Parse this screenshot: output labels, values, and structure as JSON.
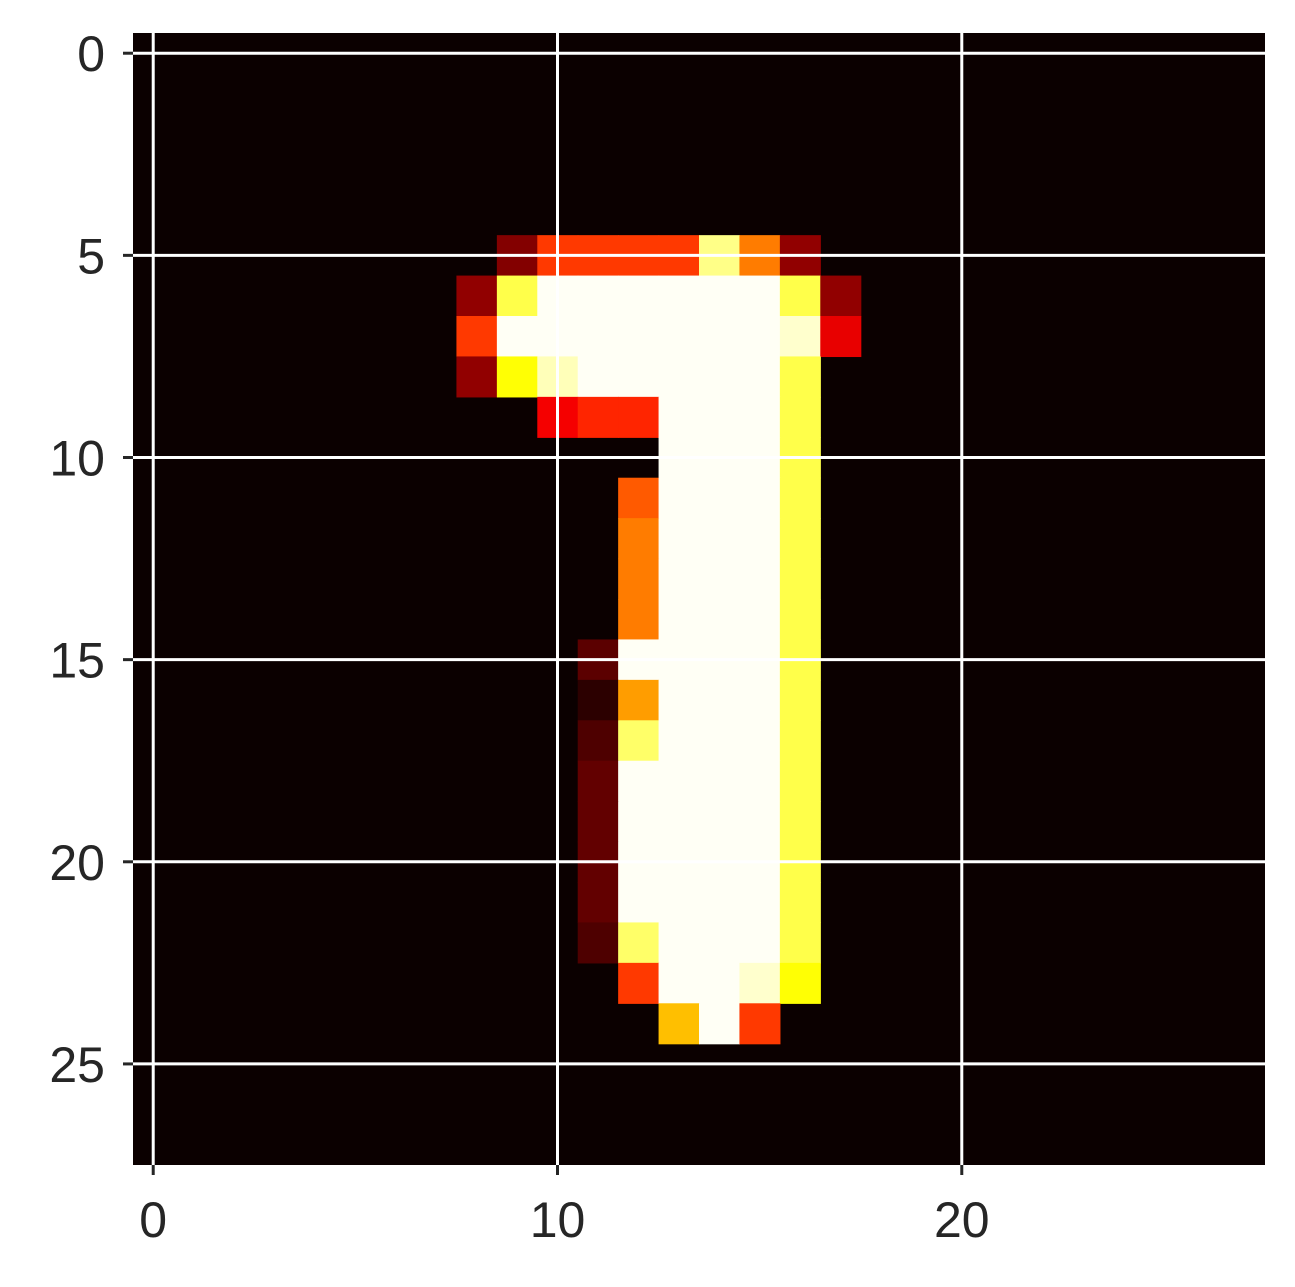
{
  "chart_data": {
    "type": "heatmap",
    "title": "",
    "xlabel": "",
    "ylabel": "",
    "colormap": "hot",
    "value_range": [
      0,
      1
    ],
    "grid": true,
    "xlim": [
      -0.5,
      27.5
    ],
    "ylim": [
      27.5,
      -0.5
    ],
    "x_ticks": [
      0,
      10,
      20
    ],
    "y_ticks": [
      0,
      5,
      10,
      15,
      20,
      25
    ],
    "x_tick_labels": [
      "0",
      "10",
      "20"
    ],
    "y_tick_labels": [
      "0",
      "5",
      "10",
      "15",
      "20",
      "25"
    ],
    "rows": 28,
    "cols": 28,
    "nonzero_cells": [
      [
        5,
        9,
        0.18
      ],
      [
        5,
        10,
        0.45
      ],
      [
        5,
        11,
        0.45
      ],
      [
        5,
        12,
        0.45
      ],
      [
        5,
        13,
        0.45
      ],
      [
        5,
        14,
        0.88
      ],
      [
        5,
        15,
        0.55
      ],
      [
        5,
        16,
        0.2
      ],
      [
        6,
        8,
        0.2
      ],
      [
        6,
        9,
        0.82
      ],
      [
        6,
        10,
        0.99
      ],
      [
        6,
        11,
        0.99
      ],
      [
        6,
        12,
        0.99
      ],
      [
        6,
        13,
        0.99
      ],
      [
        6,
        14,
        0.99
      ],
      [
        6,
        15,
        0.99
      ],
      [
        6,
        16,
        0.82
      ],
      [
        6,
        17,
        0.2
      ],
      [
        7,
        8,
        0.45
      ],
      [
        7,
        9,
        0.99
      ],
      [
        7,
        10,
        0.99
      ],
      [
        7,
        11,
        0.99
      ],
      [
        7,
        12,
        0.99
      ],
      [
        7,
        13,
        0.99
      ],
      [
        7,
        14,
        0.99
      ],
      [
        7,
        15,
        0.99
      ],
      [
        7,
        16,
        0.95
      ],
      [
        7,
        17,
        0.33
      ],
      [
        8,
        8,
        0.2
      ],
      [
        8,
        9,
        0.75
      ],
      [
        8,
        10,
        0.93
      ],
      [
        8,
        11,
        0.99
      ],
      [
        8,
        12,
        0.99
      ],
      [
        8,
        13,
        0.99
      ],
      [
        8,
        14,
        0.99
      ],
      [
        8,
        15,
        0.99
      ],
      [
        8,
        16,
        0.82
      ],
      [
        9,
        10,
        0.35
      ],
      [
        9,
        11,
        0.42
      ],
      [
        9,
        12,
        0.42
      ],
      [
        9,
        13,
        0.99
      ],
      [
        9,
        14,
        0.99
      ],
      [
        9,
        15,
        0.99
      ],
      [
        9,
        16,
        0.82
      ],
      [
        10,
        13,
        0.99
      ],
      [
        10,
        14,
        0.99
      ],
      [
        10,
        15,
        0.99
      ],
      [
        10,
        16,
        0.82
      ],
      [
        11,
        12,
        0.5
      ],
      [
        11,
        13,
        0.99
      ],
      [
        11,
        14,
        0.99
      ],
      [
        11,
        15,
        0.99
      ],
      [
        11,
        16,
        0.82
      ],
      [
        12,
        12,
        0.55
      ],
      [
        12,
        13,
        0.99
      ],
      [
        12,
        14,
        0.99
      ],
      [
        12,
        15,
        0.99
      ],
      [
        12,
        16,
        0.82
      ],
      [
        13,
        12,
        0.55
      ],
      [
        13,
        13,
        0.99
      ],
      [
        13,
        14,
        0.99
      ],
      [
        13,
        15,
        0.99
      ],
      [
        13,
        16,
        0.82
      ],
      [
        14,
        12,
        0.55
      ],
      [
        14,
        13,
        0.99
      ],
      [
        14,
        14,
        0.99
      ],
      [
        14,
        15,
        0.99
      ],
      [
        14,
        16,
        0.82
      ],
      [
        15,
        11,
        0.12
      ],
      [
        15,
        12,
        0.99
      ],
      [
        15,
        13,
        0.99
      ],
      [
        15,
        14,
        0.99
      ],
      [
        15,
        15,
        0.99
      ],
      [
        15,
        16,
        0.82
      ],
      [
        16,
        11,
        0.05
      ],
      [
        16,
        12,
        0.6
      ],
      [
        16,
        13,
        0.99
      ],
      [
        16,
        14,
        0.99
      ],
      [
        16,
        15,
        0.99
      ],
      [
        16,
        16,
        0.82
      ],
      [
        17,
        11,
        0.1
      ],
      [
        17,
        12,
        0.85
      ],
      [
        17,
        13,
        0.99
      ],
      [
        17,
        14,
        0.99
      ],
      [
        17,
        15,
        0.99
      ],
      [
        17,
        16,
        0.82
      ],
      [
        18,
        11,
        0.13
      ],
      [
        18,
        12,
        0.99
      ],
      [
        18,
        13,
        0.99
      ],
      [
        18,
        14,
        0.99
      ],
      [
        18,
        15,
        0.99
      ],
      [
        18,
        16,
        0.82
      ],
      [
        19,
        11,
        0.13
      ],
      [
        19,
        12,
        0.99
      ],
      [
        19,
        13,
        0.99
      ],
      [
        19,
        14,
        0.99
      ],
      [
        19,
        15,
        0.99
      ],
      [
        19,
        16,
        0.82
      ],
      [
        20,
        11,
        0.13
      ],
      [
        20,
        12,
        0.99
      ],
      [
        20,
        13,
        0.99
      ],
      [
        20,
        14,
        0.99
      ],
      [
        20,
        15,
        0.99
      ],
      [
        20,
        16,
        0.82
      ],
      [
        21,
        11,
        0.13
      ],
      [
        21,
        12,
        0.99
      ],
      [
        21,
        13,
        0.99
      ],
      [
        21,
        14,
        0.99
      ],
      [
        21,
        15,
        0.99
      ],
      [
        21,
        16,
        0.82
      ],
      [
        22,
        11,
        0.1
      ],
      [
        22,
        12,
        0.85
      ],
      [
        22,
        13,
        0.99
      ],
      [
        22,
        14,
        0.99
      ],
      [
        22,
        15,
        0.99
      ],
      [
        22,
        16,
        0.82
      ],
      [
        23,
        12,
        0.45
      ],
      [
        23,
        13,
        0.99
      ],
      [
        23,
        14,
        0.99
      ],
      [
        23,
        15,
        0.95
      ],
      [
        23,
        16,
        0.75
      ],
      [
        24,
        13,
        0.65
      ],
      [
        24,
        14,
        0.99
      ],
      [
        24,
        15,
        0.45
      ]
    ]
  }
}
